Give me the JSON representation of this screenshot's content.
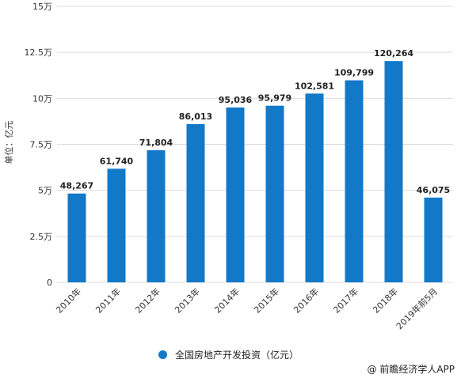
{
  "chart_data": {
    "type": "bar",
    "categories": [
      "2010年",
      "2011年",
      "2012年",
      "2013年",
      "2014年",
      "2015年",
      "2016年",
      "2017年",
      "2018年",
      "2019年前5月"
    ],
    "series": [
      {
        "name": "全国房地产开发投资（亿元）",
        "values": [
          48267,
          61740,
          71804,
          86013,
          95036,
          95979,
          102581,
          109799,
          120264,
          46075
        ],
        "labels": [
          "48,267",
          "61,740",
          "71,804",
          "86,013",
          "95,036",
          "95,979",
          "102,581",
          "109,799",
          "120,264",
          "46,075"
        ]
      }
    ],
    "ylabel": "单位：亿元",
    "ylim": [
      0,
      150000
    ],
    "yticks": [
      0,
      25000,
      50000,
      75000,
      100000,
      125000,
      150000
    ],
    "ytick_labels": [
      "0",
      "2.5万",
      "5万",
      "7.5万",
      "10万",
      "12.5万",
      "15万"
    ],
    "grid": true,
    "legend_position": "bottom"
  },
  "colors": {
    "bar": "#1278c8",
    "grid": "#dcdcdc"
  },
  "source": "@ 前瞻经济学人APP"
}
